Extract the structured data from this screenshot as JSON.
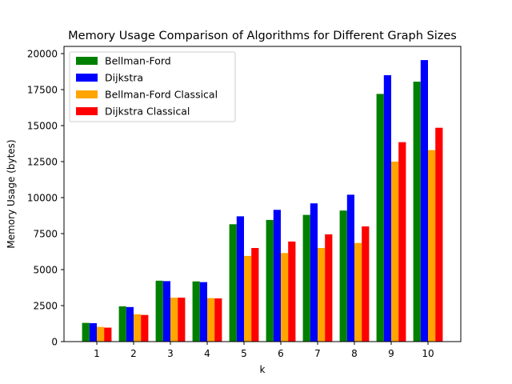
{
  "chart_data": {
    "type": "bar",
    "title": "Memory Usage Comparison of Algorithms for Different Graph Sizes",
    "xlabel": "k",
    "ylabel": "Memory Usage (bytes)",
    "categories": [
      "1",
      "2",
      "3",
      "4",
      "5",
      "6",
      "7",
      "8",
      "9",
      "10"
    ],
    "ylim": [
      0,
      20500
    ],
    "yticks": [
      "0",
      "2500",
      "5000",
      "7500",
      "10000",
      "12500",
      "15000",
      "17500",
      "20000"
    ],
    "legend_position": "top-left",
    "grid": false,
    "series": [
      {
        "name": "Bellman-Ford",
        "color": "#008000",
        "values": [
          1300,
          2450,
          4230,
          4180,
          8150,
          8450,
          8800,
          9100,
          17200,
          18050
        ]
      },
      {
        "name": "Dijkstra",
        "color": "#0000ff",
        "values": [
          1280,
          2400,
          4200,
          4130,
          8700,
          9150,
          9600,
          10200,
          18500,
          19550
        ]
      },
      {
        "name": "Bellman-Ford Classical",
        "color": "#ffa500",
        "values": [
          1020,
          1900,
          3050,
          3020,
          5950,
          6150,
          6500,
          6850,
          12500,
          13300
        ]
      },
      {
        "name": "Dijkstra Classical",
        "color": "#ff0000",
        "values": [
          970,
          1850,
          3050,
          3000,
          6500,
          6950,
          7450,
          8000,
          13850,
          14850
        ]
      }
    ]
  }
}
